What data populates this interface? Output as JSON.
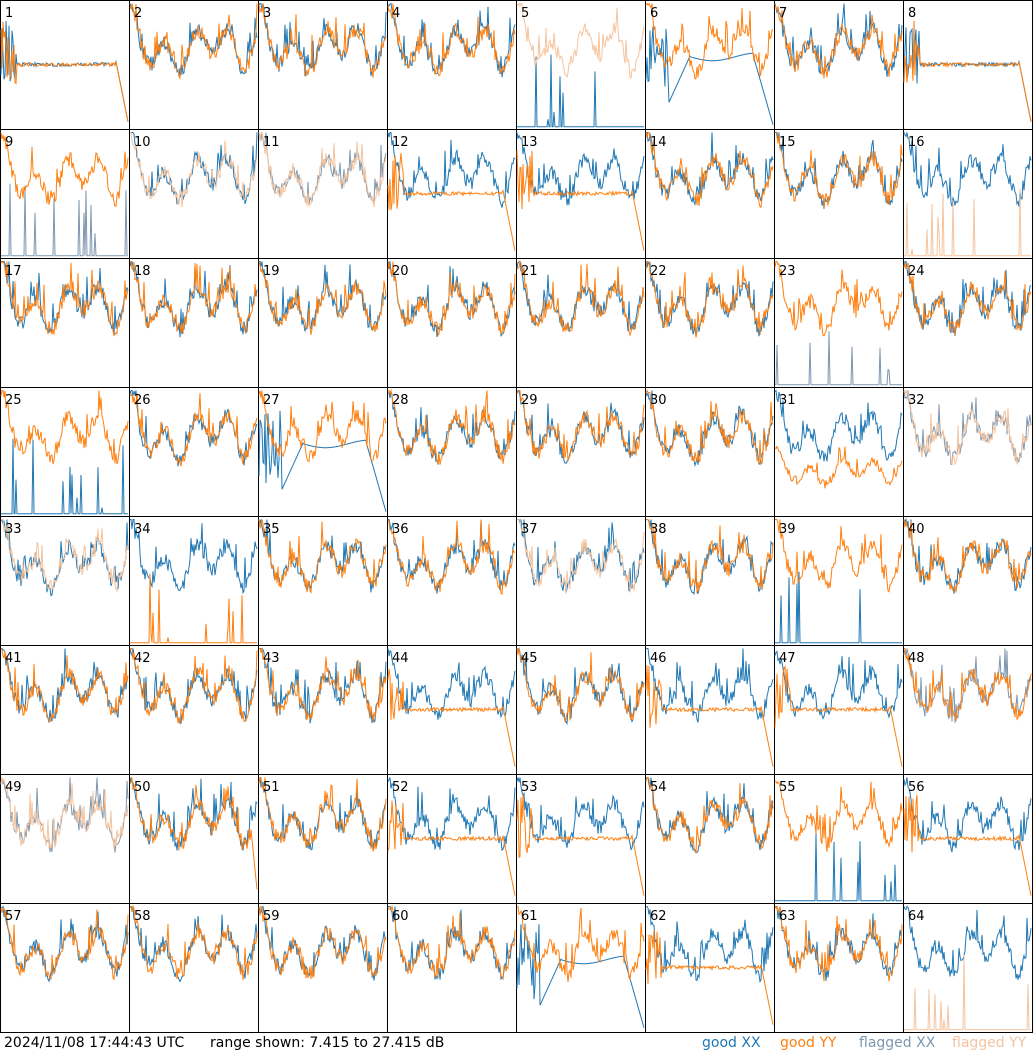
{
  "chart_data": {
    "type": "line",
    "panel_count": 64,
    "columns": 8,
    "rows": 8,
    "panel_labels": [
      "1",
      "2",
      "3",
      "4",
      "5",
      "6",
      "7",
      "8",
      "9",
      "10",
      "11",
      "12",
      "13",
      "14",
      "15",
      "16",
      "17",
      "18",
      "19",
      "20",
      "21",
      "22",
      "23",
      "24",
      "25",
      "26",
      "27",
      "28",
      "29",
      "30",
      "31",
      "32",
      "33",
      "34",
      "35",
      "36",
      "37",
      "38",
      "39",
      "40",
      "41",
      "42",
      "43",
      "44",
      "45",
      "46",
      "47",
      "48",
      "49",
      "50",
      "51",
      "52",
      "53",
      "54",
      "55",
      "56",
      "57",
      "58",
      "59",
      "60",
      "61",
      "62",
      "63",
      "64"
    ],
    "ylim_db": [
      7.415,
      27.415
    ],
    "timestamp": "2024/11/08 17:44:43 UTC",
    "range_text": "range shown: 7.415 to 27.415 dB",
    "legend": [
      {
        "label": "good XX",
        "color": "#1f77b4"
      },
      {
        "label": "good YY",
        "color": "#ff7f0e"
      },
      {
        "label": "flagged XX",
        "color": "#7d97b0"
      },
      {
        "label": "flagged YY",
        "color": "#f5c49e"
      }
    ],
    "series_style": {
      "good_xx": "#1f77b4",
      "good_yy": "#ff7f0e",
      "flagged_xx": "#7d97b0",
      "flagged_yy": "#f5c49e"
    },
    "panel_traces": {
      "xx_flagged": [
        9,
        11,
        23,
        32,
        48,
        49
      ],
      "yy_flagged": [
        5,
        10,
        11,
        16,
        32,
        33,
        37,
        49,
        64
      ],
      "xx_spikes": [
        5,
        9,
        23,
        25,
        39,
        55
      ],
      "yy_spikes": [
        16,
        34,
        64
      ],
      "xx_decay": [
        6,
        27,
        61
      ],
      "yy_plateau": [
        1,
        8,
        12,
        13,
        44,
        46,
        47,
        52,
        53,
        56,
        62
      ],
      "xx_plateau": [
        1,
        8
      ],
      "yy_dropout": [
        50
      ],
      "yy_low": [
        31
      ],
      "xx_spiky_low": [
        34
      ]
    }
  }
}
